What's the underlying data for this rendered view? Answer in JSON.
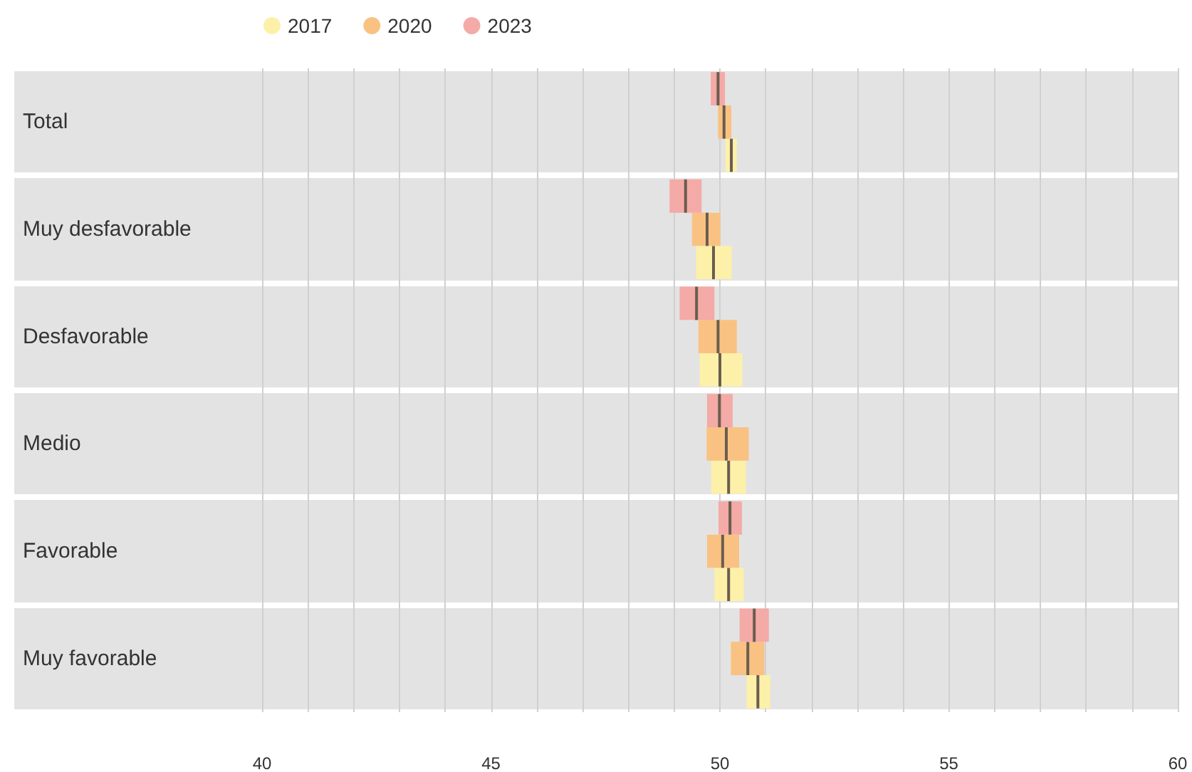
{
  "chart_data": {
    "type": "box",
    "orientation": "horizontal",
    "categories": [
      "Total",
      "Muy desfavorable",
      "Desfavorable",
      "Medio",
      "Favorable",
      "Muy favorable"
    ],
    "series": [
      {
        "name": "2017",
        "color": "#fdf0a9",
        "boxes": [
          {
            "low": 50.12,
            "q1": 50.12,
            "median": 50.25,
            "q3": 50.37,
            "high": 50.37
          },
          {
            "low": 49.48,
            "q1": 49.48,
            "median": 49.86,
            "q3": 50.26,
            "high": 50.26
          },
          {
            "low": 49.56,
            "q1": 49.56,
            "median": 50.0,
            "q3": 50.49,
            "high": 50.49
          },
          {
            "low": 49.81,
            "q1": 49.81,
            "median": 50.19,
            "q3": 50.57,
            "high": 50.57
          },
          {
            "low": 49.88,
            "q1": 49.88,
            "median": 50.19,
            "q3": 50.52,
            "high": 50.52
          },
          {
            "low": 50.58,
            "q1": 50.58,
            "median": 50.83,
            "q3": 51.1,
            "high": 51.1
          }
        ]
      },
      {
        "name": "2020",
        "color": "#f9c282",
        "boxes": [
          {
            "low": 49.96,
            "q1": 49.96,
            "median": 50.09,
            "q3": 50.25,
            "high": 50.25
          },
          {
            "low": 49.39,
            "q1": 49.39,
            "median": 49.72,
            "q3": 50.01,
            "high": 50.01
          },
          {
            "low": 49.53,
            "q1": 49.53,
            "median": 49.96,
            "q3": 50.37,
            "high": 50.37
          },
          {
            "low": 49.71,
            "q1": 49.71,
            "median": 50.14,
            "q3": 50.63,
            "high": 50.63
          },
          {
            "low": 49.72,
            "q1": 49.72,
            "median": 50.06,
            "q3": 50.42,
            "high": 50.42
          },
          {
            "low": 50.24,
            "q1": 50.24,
            "median": 50.61,
            "q3": 50.97,
            "high": 50.97
          }
        ]
      },
      {
        "name": "2023",
        "color": "#f4aaa6",
        "boxes": [
          {
            "low": 49.8,
            "q1": 49.8,
            "median": 49.96,
            "q3": 50.11,
            "high": 50.11
          },
          {
            "low": 48.9,
            "q1": 48.9,
            "median": 49.25,
            "q3": 49.6,
            "high": 49.6
          },
          {
            "low": 49.12,
            "q1": 49.12,
            "median": 49.49,
            "q3": 49.88,
            "high": 49.88
          },
          {
            "low": 49.72,
            "q1": 49.72,
            "median": 49.99,
            "q3": 50.28,
            "high": 50.28
          },
          {
            "low": 49.97,
            "q1": 49.97,
            "median": 50.22,
            "q3": 50.48,
            "high": 50.48
          },
          {
            "low": 50.43,
            "q1": 50.43,
            "median": 50.75,
            "q3": 51.07,
            "high": 51.07
          }
        ]
      }
    ],
    "xlim": [
      40,
      60
    ],
    "xticks": [
      40,
      {
        "value": 41,
        "label": null
      },
      {
        "value": 42,
        "label": null
      },
      {
        "value": 43,
        "label": null
      },
      {
        "value": 44,
        "label": null
      },
      45,
      {
        "value": 46,
        "label": null
      },
      {
        "value": 47,
        "label": null
      },
      {
        "value": 48,
        "label": null
      },
      {
        "value": 49,
        "label": null
      },
      50,
      {
        "value": 51,
        "label": null
      },
      {
        "value": 52,
        "label": null
      },
      {
        "value": 53,
        "label": null
      },
      {
        "value": 54,
        "label": null
      },
      55,
      {
        "value": 56,
        "label": null
      },
      {
        "value": 57,
        "label": null
      },
      {
        "value": 58,
        "label": null
      },
      {
        "value": 59,
        "label": null
      },
      60
    ],
    "grid": "x",
    "legend": "top"
  }
}
